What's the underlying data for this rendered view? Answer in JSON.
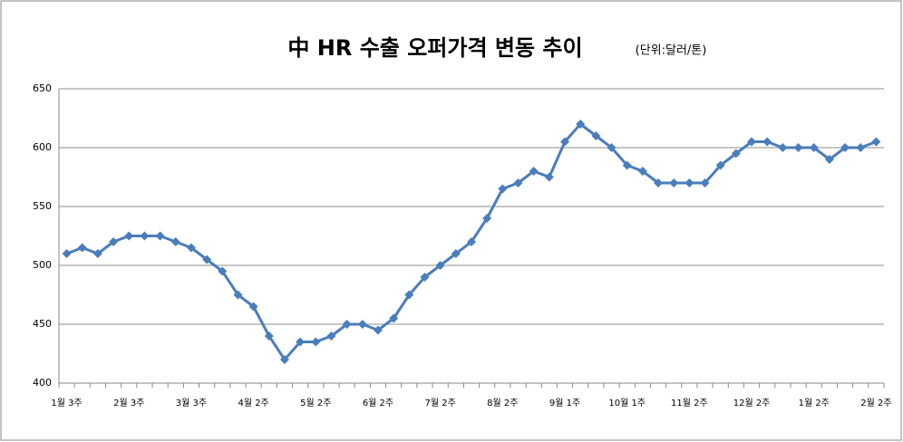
{
  "chart_data": {
    "type": "line",
    "title": "中 HR 수출 오퍼가격 변동 추이",
    "subtitle": "(단위:달러/톤)",
    "categories": [
      "1월 3주",
      null,
      null,
      null,
      "2월 3주",
      null,
      null,
      null,
      "3월 3주",
      null,
      null,
      null,
      "4월 2주",
      null,
      null,
      null,
      "5월 2주",
      null,
      null,
      null,
      "6월 2주",
      null,
      null,
      null,
      "7월 2주",
      null,
      null,
      null,
      "8월 2주",
      null,
      null,
      null,
      "9월 1주",
      null,
      null,
      null,
      "10월 1주",
      null,
      null,
      null,
      "11월 2주",
      null,
      null,
      null,
      "12월 2주",
      null,
      null,
      null,
      "1월 2주",
      null,
      null,
      null,
      "2월 2주"
    ],
    "series": [
      {
        "name": "HR",
        "color": "#4a7ebb",
        "values": [
          510,
          515,
          510,
          520,
          525,
          525,
          525,
          520,
          515,
          505,
          495,
          475,
          465,
          440,
          420,
          435,
          435,
          440,
          450,
          450,
          445,
          455,
          475,
          490,
          500,
          510,
          520,
          540,
          565,
          570,
          580,
          575,
          605,
          620,
          610,
          600,
          585,
          580,
          570,
          570,
          570,
          570,
          585,
          595,
          605,
          605,
          600,
          600,
          600,
          590,
          600,
          600,
          605
        ]
      }
    ],
    "ylim": [
      400,
      650
    ],
    "yticks": [
      400,
      450,
      500,
      550,
      600,
      650
    ],
    "grid": true
  }
}
